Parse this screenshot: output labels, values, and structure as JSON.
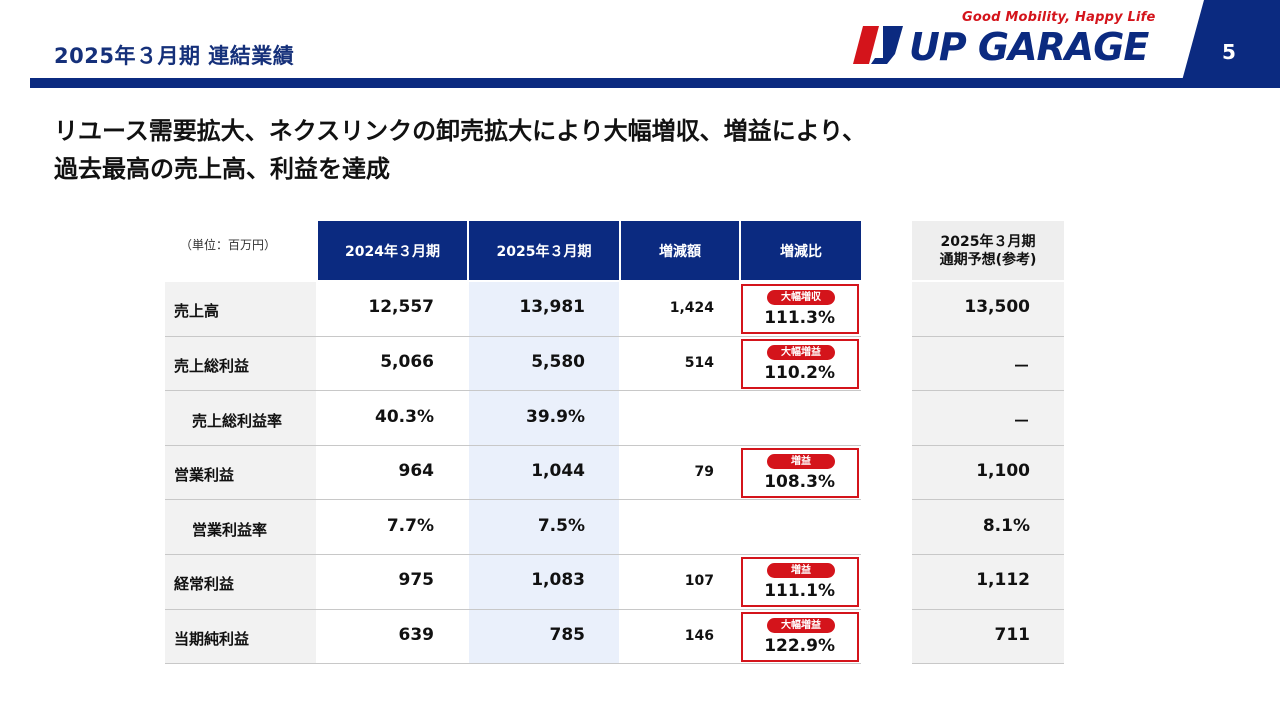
{
  "header": {
    "title": "2025年３月期 連結業績",
    "tagline": "Good Mobility, Happy Life",
    "logo_text": "UP GARAGE",
    "page_number": "5",
    "brand_red": "#d4141b",
    "brand_blue": "#0b2a80"
  },
  "headline": {
    "line1": "リユース需要拡大、ネクスリンクの卸売拡大により大幅増収、増益により、",
    "line2": "過去最高の売上高、利益を達成"
  },
  "table": {
    "unit": "（単位：百万円）",
    "columns": [
      "2024年３月期",
      "2025年３月期",
      "増減額",
      "増減比"
    ],
    "forecast_header": [
      "2025年３月期",
      "通期予想(参考)"
    ],
    "rows": [
      {
        "label": "売上高",
        "fy2024": "12,557",
        "fy2025": "13,981",
        "diff": "1,424",
        "badge": "大幅増収",
        "ratio": "111.3%",
        "forecast": "13,500"
      },
      {
        "label": "売上総利益",
        "fy2024": "5,066",
        "fy2025": "5,580",
        "diff": "514",
        "badge": "大幅増益",
        "ratio": "110.2%",
        "forecast": "－"
      },
      {
        "label": "売上総利益率",
        "fy2024": "40.3%",
        "fy2025": "39.9%",
        "diff": "",
        "badge": "",
        "ratio": "",
        "forecast": "－"
      },
      {
        "label": "営業利益",
        "fy2024": "964",
        "fy2025": "1,044",
        "diff": "79",
        "badge": "増益",
        "ratio": "108.3%",
        "forecast": "1,100"
      },
      {
        "label": "営業利益率",
        "fy2024": "7.7%",
        "fy2025": "7.5%",
        "diff": "",
        "badge": "",
        "ratio": "",
        "forecast": "8.1%"
      },
      {
        "label": "経常利益",
        "fy2024": "975",
        "fy2025": "1,083",
        "diff": "107",
        "badge": "増益",
        "ratio": "111.1%",
        "forecast": "1,112"
      },
      {
        "label": "当期純利益",
        "fy2024": "639",
        "fy2025": "785",
        "diff": "146",
        "badge": "大幅増益",
        "ratio": "122.9%",
        "forecast": "711"
      }
    ]
  }
}
